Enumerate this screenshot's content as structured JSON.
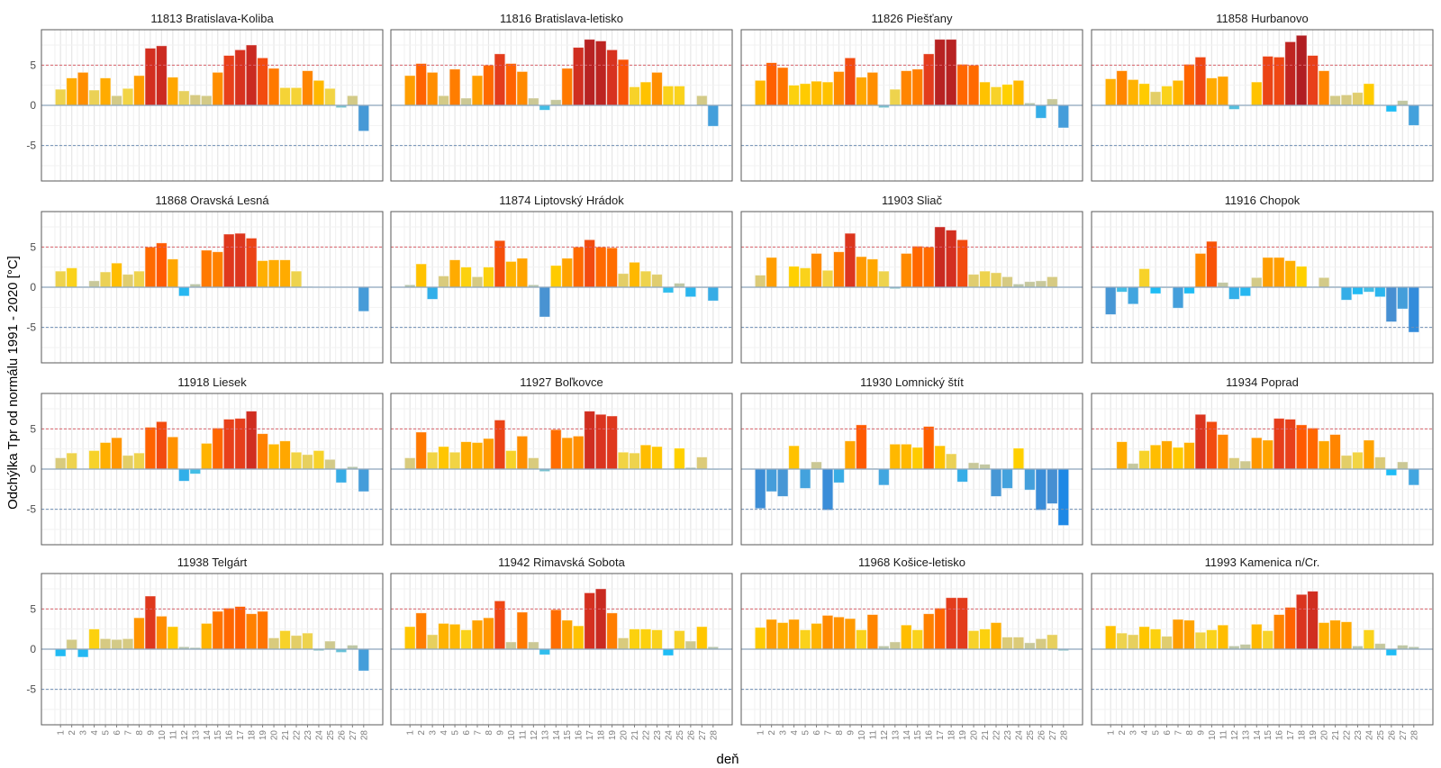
{
  "chart_data": {
    "type": "bar",
    "layout": "facet-grid 4x4",
    "xlabel": "deň",
    "ylabel": "Odchýlka Tpr od normálu 1991 - 2020 [°C]",
    "ylim": [
      -9.4,
      9.4
    ],
    "yticks": [
      -5,
      0,
      5
    ],
    "reference_lines": [
      {
        "value": 5,
        "style": "dashed",
        "color": "#d9636b"
      },
      {
        "value": -5,
        "style": "dashed",
        "color": "#6f8fb5"
      }
    ],
    "grid": true,
    "categories": [
      "1",
      "2",
      "3",
      "4",
      "5",
      "6",
      "7",
      "8",
      "9",
      "10",
      "11",
      "12",
      "13",
      "14",
      "15",
      "16",
      "17",
      "18",
      "19",
      "20",
      "21",
      "22",
      "23",
      "24",
      "25",
      "26",
      "27",
      "28"
    ],
    "panels": [
      {
        "title": "11813 Bratislava-Koliba",
        "values": [
          2.0,
          3.4,
          4.1,
          1.9,
          3.4,
          1.2,
          2.1,
          3.7,
          7.1,
          7.4,
          3.5,
          1.8,
          1.3,
          1.2,
          4.1,
          6.2,
          6.9,
          7.5,
          5.9,
          4.6,
          2.2,
          2.2,
          4.3,
          3.1,
          2.1,
          -0.3,
          1.2,
          -3.2
        ]
      },
      {
        "title": "11816 Bratislava-letisko",
        "values": [
          3.7,
          5.2,
          4.1,
          1.2,
          4.5,
          0.9,
          3.7,
          5.0,
          6.4,
          5.2,
          4.2,
          0.9,
          -0.6,
          0.7,
          4.6,
          7.2,
          8.2,
          8.0,
          6.9,
          5.7,
          2.3,
          2.9,
          4.1,
          2.4,
          2.4,
          0.05,
          1.2,
          -2.6
        ]
      },
      {
        "title": "11826 Piešťany",
        "values": [
          3.1,
          5.3,
          4.7,
          2.5,
          2.7,
          3.0,
          2.9,
          4.2,
          5.9,
          3.5,
          4.1,
          -0.3,
          2.0,
          4.3,
          4.5,
          6.4,
          8.2,
          8.2,
          5.1,
          5.0,
          2.9,
          2.3,
          2.6,
          3.1,
          0.3,
          -1.6,
          0.8,
          -2.8
        ]
      },
      {
        "title": "11858 Hurbanovo",
        "values": [
          3.3,
          4.3,
          3.2,
          2.7,
          1.7,
          2.4,
          3.1,
          5.1,
          6.0,
          3.4,
          3.6,
          -0.5,
          0.0,
          2.9,
          6.1,
          6.0,
          7.9,
          8.7,
          6.2,
          4.3,
          1.2,
          1.3,
          1.6,
          2.7,
          0.0,
          -0.8,
          0.6,
          -2.5
        ]
      },
      {
        "title": "11868 Oravská Lesná",
        "values": [
          2.0,
          2.4,
          0.1,
          0.8,
          1.9,
          3.0,
          1.6,
          2.0,
          5.0,
          5.5,
          3.5,
          -1.1,
          0.4,
          4.6,
          4.4,
          6.6,
          6.7,
          6.1,
          3.3,
          3.4,
          3.4,
          2.0,
          0.1,
          0.0,
          0.0,
          0.0,
          0.0,
          -3.0
        ]
      },
      {
        "title": "11874 Liptovský Hrádok",
        "values": [
          0.3,
          2.9,
          -1.5,
          1.4,
          3.4,
          2.5,
          1.3,
          2.5,
          5.8,
          3.2,
          3.6,
          0.3,
          -3.7,
          2.7,
          3.6,
          5.0,
          5.9,
          5.0,
          4.9,
          1.7,
          3.1,
          2.0,
          1.6,
          -0.7,
          0.5,
          -1.2,
          -0.1,
          -1.7
        ]
      },
      {
        "title": "11903 Sliač",
        "values": [
          1.5,
          3.7,
          0.0,
          2.6,
          2.4,
          4.2,
          2.1,
          4.4,
          6.7,
          3.8,
          3.5,
          2.0,
          -0.2,
          4.2,
          5.1,
          5.0,
          7.5,
          7.1,
          5.9,
          1.6,
          2.0,
          1.8,
          1.3,
          0.4,
          0.7,
          0.8,
          1.3,
          0.0
        ]
      },
      {
        "title": "11916 Chopok",
        "values": [
          -3.4,
          -0.6,
          -2.1,
          2.3,
          -0.8,
          -0.1,
          -2.6,
          -0.8,
          4.2,
          5.7,
          0.6,
          -1.5,
          -1.1,
          1.2,
          3.7,
          3.7,
          3.3,
          2.6,
          0.1,
          1.2,
          0.1,
          -1.6,
          -0.9,
          -0.6,
          -1.2,
          -4.3,
          -2.7,
          -5.6
        ]
      },
      {
        "title": "11918 Liesek",
        "values": [
          1.4,
          2.0,
          0.0,
          2.3,
          3.3,
          3.9,
          1.7,
          2.0,
          5.2,
          5.9,
          4.0,
          -1.5,
          -0.6,
          3.2,
          5.1,
          6.2,
          6.3,
          7.2,
          4.4,
          3.1,
          3.5,
          2.1,
          1.8,
          2.3,
          1.2,
          -1.7,
          0.3,
          -2.8
        ]
      },
      {
        "title": "11927 Boľkovce",
        "values": [
          1.4,
          4.6,
          2.1,
          2.8,
          2.1,
          3.4,
          3.3,
          3.8,
          6.1,
          2.3,
          4.1,
          1.4,
          -0.3,
          4.9,
          3.9,
          4.1,
          7.2,
          6.8,
          6.6,
          2.1,
          2.0,
          3.0,
          2.8,
          0.0,
          2.6,
          0.2,
          1.5,
          -0.1
        ]
      },
      {
        "title": "11930 Lomnický štít",
        "values": [
          -4.9,
          -2.8,
          -3.4,
          2.9,
          -2.4,
          0.9,
          -5.1,
          -1.7,
          3.5,
          5.5,
          0.1,
          -2.0,
          3.1,
          3.1,
          2.7,
          5.3,
          2.9,
          1.9,
          -1.6,
          0.8,
          0.6,
          -3.4,
          -2.4,
          2.6,
          -2.6,
          -5.1,
          -4.3,
          -7.0
        ]
      },
      {
        "title": "11934 Poprad",
        "values": [
          0.1,
          3.4,
          0.7,
          2.3,
          3.0,
          3.5,
          2.7,
          3.3,
          6.8,
          5.9,
          4.3,
          1.4,
          1.0,
          3.9,
          3.6,
          6.3,
          6.2,
          5.5,
          5.1,
          3.5,
          4.3,
          1.7,
          2.1,
          3.6,
          1.5,
          -0.8,
          0.9,
          -2.0
        ]
      },
      {
        "title": "11938 Telgárt",
        "values": [
          -0.9,
          1.2,
          -1.0,
          2.5,
          1.3,
          1.2,
          1.3,
          3.9,
          6.6,
          4.1,
          2.8,
          0.3,
          0.2,
          3.2,
          4.7,
          5.1,
          5.3,
          4.4,
          4.7,
          1.4,
          2.3,
          1.7,
          2.0,
          -0.2,
          1.0,
          -0.4,
          0.5,
          -2.7
        ]
      },
      {
        "title": "11942 Rimavská Sobota",
        "values": [
          2.8,
          4.5,
          1.8,
          3.2,
          3.1,
          2.4,
          3.6,
          3.9,
          6.0,
          0.9,
          4.6,
          0.9,
          -0.7,
          4.9,
          3.6,
          2.9,
          7.0,
          7.5,
          4.5,
          1.4,
          2.5,
          2.5,
          2.4,
          -0.8,
          2.3,
          1.0,
          2.8,
          0.3
        ]
      },
      {
        "title": "11968 Košice-letisko",
        "values": [
          2.7,
          3.7,
          3.3,
          3.7,
          2.4,
          3.2,
          4.2,
          4.0,
          3.8,
          2.4,
          4.3,
          0.4,
          0.9,
          3.0,
          2.4,
          4.4,
          5.1,
          6.4,
          6.4,
          2.3,
          2.5,
          3.3,
          1.5,
          1.5,
          0.8,
          1.3,
          1.8,
          -0.2
        ]
      },
      {
        "title": "11993 Kamenica n/Cr.",
        "values": [
          2.9,
          2.0,
          1.8,
          2.8,
          2.5,
          1.6,
          3.7,
          3.6,
          2.1,
          2.4,
          3.0,
          0.4,
          0.6,
          3.1,
          2.3,
          4.3,
          5.2,
          6.8,
          7.2,
          3.3,
          3.6,
          3.4,
          0.4,
          2.4,
          0.7,
          -0.8,
          0.5,
          0.3
        ]
      }
    ]
  }
}
